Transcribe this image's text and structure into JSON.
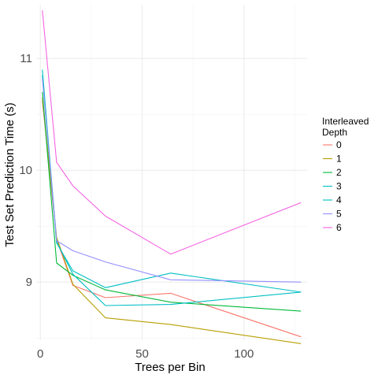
{
  "chart_data": {
    "type": "line",
    "xlabel": "Trees per Bin",
    "ylabel": "Test Set Prediction Time (s)",
    "xlim": [
      -2,
      131
    ],
    "ylim": [
      8.48,
      11.48
    ],
    "x_ticks": [
      0,
      50,
      100
    ],
    "x_tick_labels": [
      "0",
      "50",
      "100"
    ],
    "y_ticks": [
      9,
      10,
      11
    ],
    "y_tick_labels": [
      "9",
      "10",
      "11"
    ],
    "grid": true,
    "legend_title_lines": [
      "Interleaved",
      "Depth"
    ],
    "legend_position": "right",
    "x": [
      1,
      8,
      16,
      32,
      64,
      128
    ],
    "series": [
      {
        "name": "0",
        "color": "#F8766D",
        "values": [
          10.62,
          9.38,
          8.97,
          8.86,
          8.9,
          8.51
        ]
      },
      {
        "name": "1",
        "color": "#B79F00",
        "values": [
          10.65,
          9.4,
          8.98,
          8.68,
          8.62,
          8.45
        ]
      },
      {
        "name": "2",
        "color": "#00BA38",
        "values": [
          10.7,
          9.17,
          9.06,
          8.93,
          8.82,
          8.74
        ]
      },
      {
        "name": "3",
        "color": "#00BFC4",
        "values": [
          10.9,
          9.36,
          9.07,
          8.79,
          8.8,
          8.91
        ]
      },
      {
        "name": "4",
        "color": "#00BFC4",
        "values": [
          10.85,
          9.35,
          9.1,
          8.95,
          9.08,
          8.91
        ]
      },
      {
        "name": "5",
        "color": "#9590FF",
        "values": [
          10.82,
          9.37,
          9.28,
          9.18,
          9.02,
          9.0
        ]
      },
      {
        "name": "6",
        "color": "#F564E3",
        "values": [
          11.43,
          10.07,
          9.86,
          9.59,
          9.25,
          9.71
        ]
      }
    ]
  }
}
